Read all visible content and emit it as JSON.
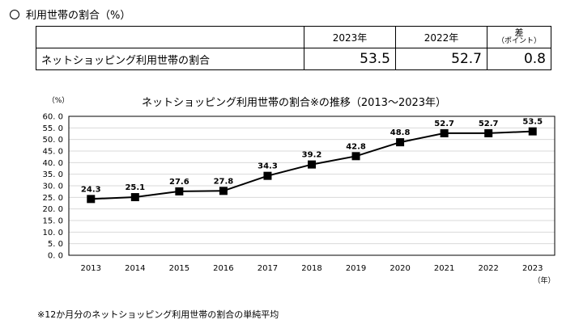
{
  "heading": "利用世帯の割合（%）",
  "summary_table": {
    "headers": [
      "",
      "2023年",
      "2022年"
    ],
    "diff_header_line1": "差",
    "diff_header_line2": "（ポイント）",
    "row_label": "ネットショッピング利用世帯の割合",
    "values": [
      "53.5",
      "52.7",
      "0.8"
    ]
  },
  "chart_data": {
    "type": "line",
    "title": "ネットショッピング利用世帯の割合※の推移（2013～2023年）",
    "y_unit": "（%）",
    "x_unit": "（年）",
    "categories": [
      "2013",
      "2014",
      "2015",
      "2016",
      "2017",
      "2018",
      "2019",
      "2020",
      "2021",
      "2022",
      "2023"
    ],
    "series": [
      {
        "values": [
          24.3,
          25.1,
          27.6,
          27.8,
          34.3,
          39.2,
          42.8,
          48.8,
          52.7,
          52.7,
          53.5
        ]
      }
    ],
    "data_labels": [
      "24.3",
      "25.1",
      "27.6",
      "27.8",
      "34.3",
      "39.2",
      "42.8",
      "48.8",
      "52.7",
      "52.7",
      "53.5"
    ],
    "ylim": [
      0,
      60
    ],
    "yticks": [
      "0. 0",
      "5. 0",
      "10. 0",
      "15. 0",
      "20. 0",
      "25. 0",
      "30. 0",
      "35. 0",
      "40. 0",
      "45. 0",
      "50. 0",
      "55. 0",
      "60. 0"
    ],
    "grid": true,
    "line_color": "#000000",
    "grid_color": "#d9d9d9"
  },
  "footnote": "※12か月分のネットショッピング利用世帯の割合の単純平均"
}
